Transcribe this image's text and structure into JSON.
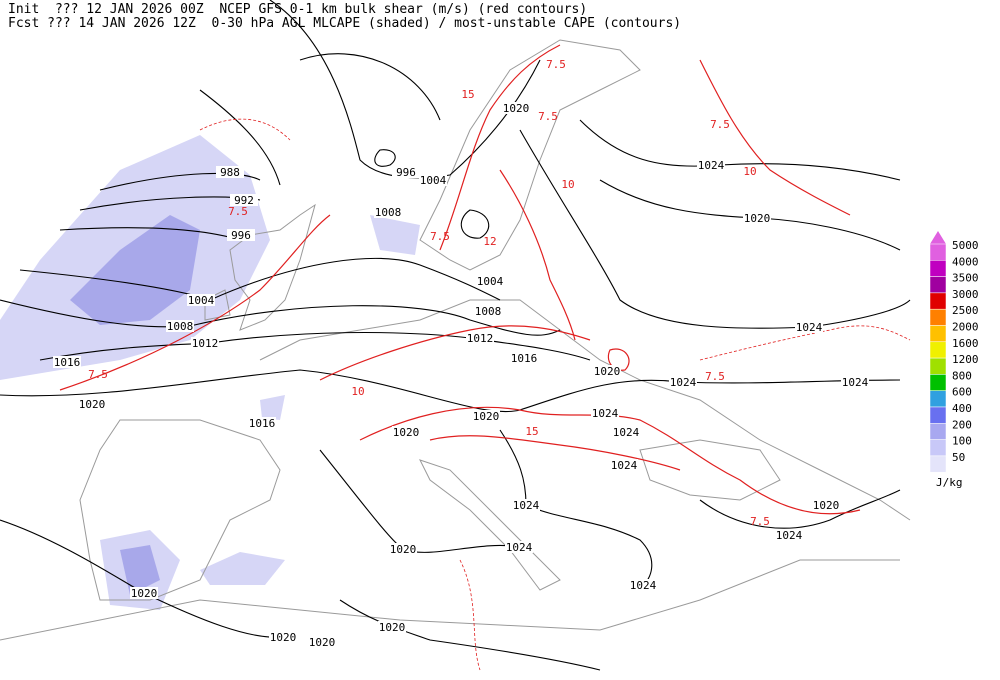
{
  "header": {
    "line1": "Init  ??? 12 JAN 2026 00Z  NCEP GFS 0-1 km bulk shear (m/s) (red contours)",
    "line2": "Fcst ??? 14 JAN 2026 12Z  0-30 hPa AGL MLCAPE (shaded) / most-unstable CAPE (contours)"
  },
  "legend": {
    "items": [
      {
        "label": "5000",
        "color": "#e060e0"
      },
      {
        "label": "4000",
        "color": "#c000c0"
      },
      {
        "label": "3500",
        "color": "#a000a0"
      },
      {
        "label": "3000",
        "color": "#e00000"
      },
      {
        "label": "2500",
        "color": "#ff8000"
      },
      {
        "label": "2000",
        "color": "#ffc000"
      },
      {
        "label": "1600",
        "color": "#f0f000"
      },
      {
        "label": "1200",
        "color": "#a0e000"
      },
      {
        "label": "800",
        "color": "#00c000"
      },
      {
        "label": "600",
        "color": "#30a0e0"
      },
      {
        "label": "400",
        "color": "#6870f0"
      },
      {
        "label": "200",
        "color": "#a8a8f0"
      },
      {
        "label": "100",
        "color": "#c8c8f8"
      },
      {
        "label": "50",
        "color": "#e4e4fa"
      }
    ],
    "unit": "J/kg"
  },
  "isobar_labels": [
    "988",
    "992",
    "996",
    "1004",
    "1008",
    "1012",
    "1016",
    "1020",
    "1016",
    "996",
    "1004",
    "1008",
    "1004",
    "1008",
    "1012",
    "1016",
    "1020",
    "1024",
    "1020",
    "1024",
    "1020",
    "1024",
    "1024",
    "1020",
    "1020",
    "1024",
    "1024",
    "1024",
    "1024",
    "1020",
    "1024",
    "1020",
    "1024",
    "1024",
    "1020",
    "1020",
    "1020",
    "1020"
  ],
  "shear_labels": [
    "7.5",
    "15",
    "12",
    "7.5",
    "7.5",
    "10",
    "7.5",
    "10",
    "15",
    "7.5",
    "10",
    "7.5",
    "7.5",
    "7.5"
  ]
}
